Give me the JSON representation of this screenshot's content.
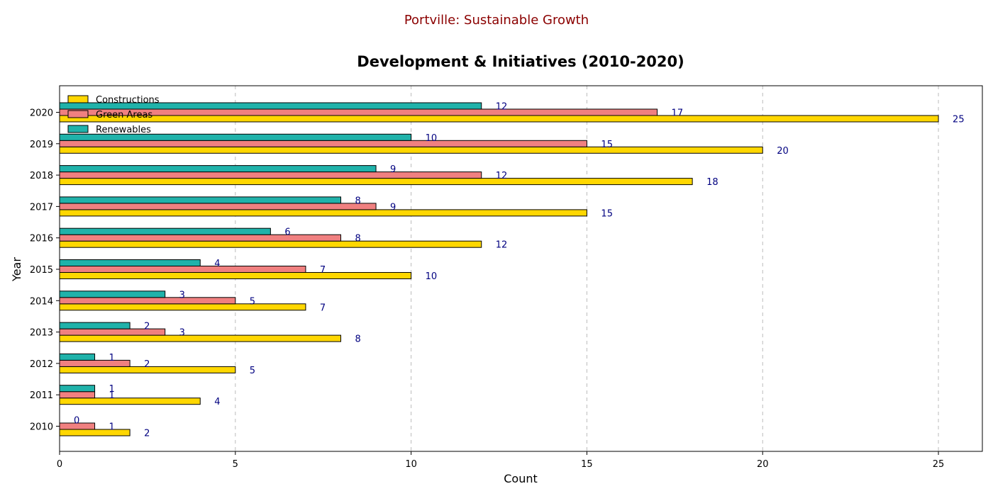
{
  "suptitle": "Portville: Sustainable Growth",
  "chart_data": {
    "type": "bar",
    "orientation": "horizontal",
    "title": "Development & Initiatives (2010-2020)",
    "xlabel": "Count",
    "ylabel": "Year",
    "categories": [
      "2010",
      "2011",
      "2012",
      "2013",
      "2014",
      "2015",
      "2016",
      "2017",
      "2018",
      "2019",
      "2020"
    ],
    "series": [
      {
        "name": "Constructions",
        "color": "#FFD700",
        "values": [
          2,
          4,
          5,
          8,
          7,
          10,
          12,
          15,
          18,
          20,
          25
        ]
      },
      {
        "name": "Green Areas",
        "color": "#F08080",
        "values": [
          1,
          1,
          2,
          3,
          5,
          7,
          8,
          9,
          12,
          15,
          17
        ]
      },
      {
        "name": "Renewables",
        "color": "#20B2AA",
        "values": [
          0,
          1,
          1,
          2,
          3,
          4,
          6,
          8,
          9,
          10,
          12
        ]
      }
    ],
    "xlim": [
      0,
      26.25
    ],
    "xticks": [
      0,
      5,
      10,
      15,
      20,
      25
    ],
    "grid": "x-dashed",
    "legend": "top-left",
    "label_color": "#000080"
  }
}
